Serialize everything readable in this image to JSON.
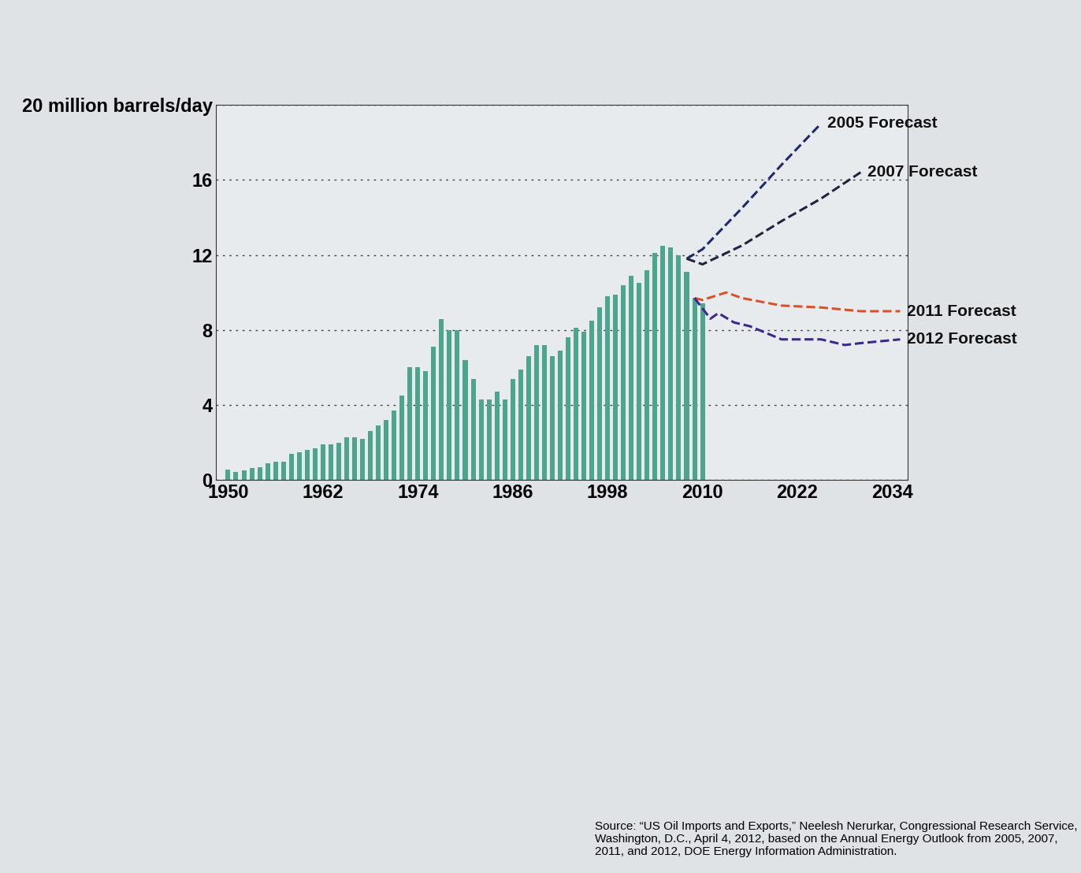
{
  "chart_data": {
    "type": "bar",
    "x": [
      1950,
      1951,
      1952,
      1953,
      1954,
      1955,
      1956,
      1957,
      1958,
      1959,
      1960,
      1961,
      1962,
      1963,
      1964,
      1965,
      1966,
      1967,
      1968,
      1969,
      1970,
      1971,
      1972,
      1973,
      1974,
      1975,
      1976,
      1977,
      1978,
      1979,
      1980,
      1981,
      1982,
      1983,
      1984,
      1985,
      1986,
      1987,
      1988,
      1989,
      1990,
      1991,
      1992,
      1993,
      1994,
      1995,
      1996,
      1997,
      1998,
      1999,
      2000,
      2001,
      2002,
      2003,
      2004,
      2005,
      2006,
      2007,
      2008,
      2009,
      2010
    ],
    "values": [
      0.55,
      0.42,
      0.52,
      0.63,
      0.7,
      0.91,
      1.0,
      1.0,
      1.4,
      1.5,
      1.6,
      1.7,
      1.9,
      1.9,
      2.0,
      2.3,
      2.3,
      2.2,
      2.6,
      2.9,
      3.2,
      3.7,
      4.5,
      6.0,
      6.0,
      5.8,
      7.1,
      8.6,
      8.0,
      8.0,
      6.4,
      5.4,
      4.3,
      4.3,
      4.7,
      4.3,
      5.4,
      5.9,
      6.6,
      7.2,
      7.2,
      6.6,
      6.9,
      7.6,
      8.1,
      7.9,
      8.5,
      9.2,
      9.8,
      9.9,
      10.4,
      10.9,
      10.5,
      11.2,
      12.1,
      12.5,
      12.4,
      12.0,
      11.1,
      9.7,
      9.4
    ],
    "color": "#4ea58f",
    "series": [
      {
        "name": "2005 Forecast",
        "type": "line",
        "color": "#1f2a6b",
        "line_style": "dashed",
        "x": [
          2008,
          2010,
          2015,
          2020,
          2025
        ],
        "values": [
          11.8,
          12.3,
          14.5,
          16.8,
          19.0
        ]
      },
      {
        "name": "2007 Forecast",
        "type": "line",
        "color": "#23233f",
        "line_style": "dashed",
        "x": [
          2008,
          2010,
          2015,
          2020,
          2025,
          2030
        ],
        "values": [
          11.8,
          11.5,
          12.5,
          13.8,
          15.0,
          16.4
        ]
      },
      {
        "name": "2011 Forecast",
        "type": "line",
        "color": "#d9532a",
        "line_style": "dashed",
        "x": [
          2009,
          2010,
          2013,
          2015,
          2020,
          2025,
          2030,
          2035
        ],
        "values": [
          9.7,
          9.6,
          10.0,
          9.7,
          9.3,
          9.2,
          9.0,
          9.0
        ]
      },
      {
        "name": "2012 Forecast",
        "type": "line",
        "color": "#3a2a8c",
        "line_style": "dashed",
        "x": [
          2009,
          2011,
          2012,
          2014,
          2016,
          2020,
          2025,
          2028,
          2030,
          2035
        ],
        "values": [
          9.7,
          8.6,
          8.9,
          8.4,
          8.2,
          7.5,
          7.5,
          7.2,
          7.3,
          7.5
        ]
      }
    ],
    "xlim": [
      1948.5,
      2036
    ],
    "xticks": [
      1950,
      1962,
      1974,
      1986,
      1998,
      2010,
      2022,
      2034
    ],
    "ylim": [
      0,
      20
    ],
    "yticks": [
      0,
      4,
      8,
      12,
      16,
      {
        "value": 20,
        "label": "20 million barrels/day"
      }
    ],
    "grid": true,
    "source": "Source: “US Oil Imports and Exports,” Neelesh Nerurkar, Congressional Research Service, Washington, D.C., April 4, 2012, based on the Annual Energy Outlook from 2005, 2007, 2011, and 2012, DOE Energy Information Administration."
  }
}
